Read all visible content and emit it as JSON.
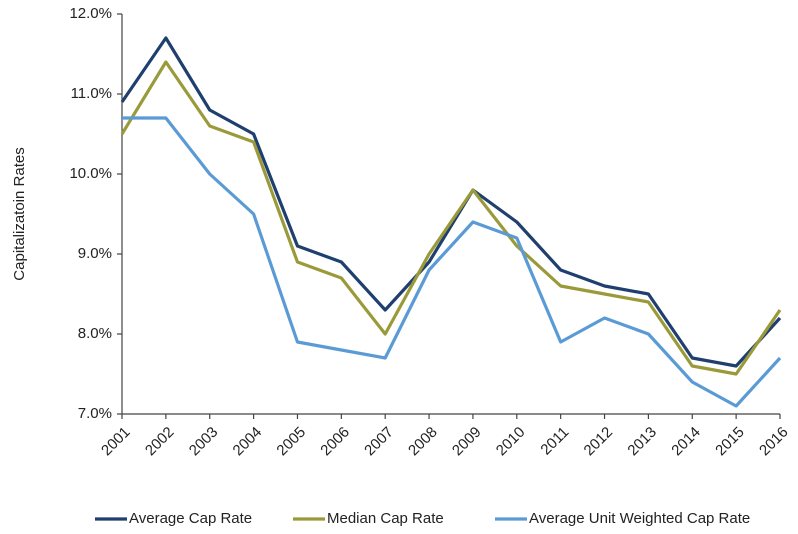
{
  "chart_data": {
    "type": "line",
    "y_label": "Capitalizatoin  Rates",
    "categories": [
      "2001",
      "2002",
      "2003",
      "2004",
      "2005",
      "2006",
      "2007",
      "2008",
      "2009",
      "2010",
      "2011",
      "2012",
      "2013",
      "2014",
      "2015",
      "2016"
    ],
    "series": [
      {
        "name": "Average Cap Rate",
        "color": "#1f3f6e",
        "values": [
          10.9,
          11.7,
          10.8,
          10.5,
          9.1,
          8.9,
          8.3,
          8.9,
          9.8,
          9.4,
          8.8,
          8.6,
          8.5,
          7.7,
          7.6,
          8.2
        ]
      },
      {
        "name": "Median Cap Rate",
        "color": "#9a9a3a",
        "values": [
          10.5,
          11.4,
          10.6,
          10.4,
          8.9,
          8.7,
          8.0,
          9.0,
          9.8,
          9.1,
          8.6,
          8.5,
          8.4,
          7.6,
          7.5,
          8.3
        ]
      },
      {
        "name": "Average Unit Weighted Cap Rate",
        "color": "#5b9bd5",
        "values": [
          10.7,
          10.7,
          10.0,
          9.5,
          7.9,
          7.8,
          7.7,
          8.8,
          9.4,
          9.2,
          7.9,
          8.2,
          8.0,
          7.4,
          7.1,
          7.7
        ]
      }
    ],
    "ylim": [
      7,
      12
    ],
    "yticks": [
      {
        "value": 7,
        "label": "7.0%"
      },
      {
        "value": 8,
        "label": "8.0%"
      },
      {
        "value": 9,
        "label": "9.0%"
      },
      {
        "value": 10,
        "label": "10.0%"
      },
      {
        "value": 11,
        "label": "11.0%"
      },
      {
        "value": 12,
        "label": "12.0%"
      }
    ],
    "grid": false,
    "legend": "bottom"
  }
}
